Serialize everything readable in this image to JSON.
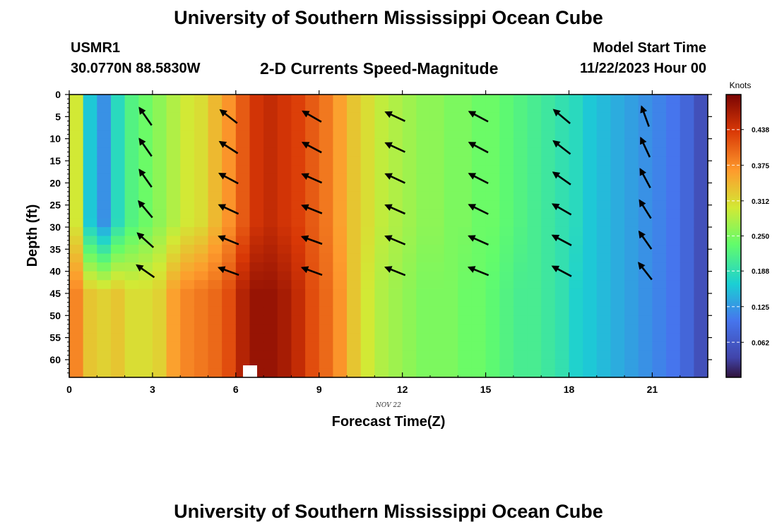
{
  "header": {
    "title": "University of Southern Mississippi Ocean Cube",
    "station_id": "USMR1",
    "location": "30.0770N  88.5830W",
    "subtitle": "2-D Currents Speed-Magnitude",
    "model_label": "Model Start Time",
    "model_time": "11/22/2023 Hour 00"
  },
  "footer": {
    "title": "University of Southern Mississippi Ocean Cube"
  },
  "chart_data": {
    "type": "heatmap",
    "xlabel": "Forecast Time(Z)",
    "ylabel": "Depth (ft)",
    "date_label": "NOV 22",
    "xlim": [
      0,
      23
    ],
    "ylim": [
      0,
      64
    ],
    "x_ticks": [
      0,
      3,
      6,
      9,
      12,
      15,
      18,
      21
    ],
    "y_ticks": [
      0,
      5,
      10,
      15,
      20,
      25,
      30,
      35,
      40,
      45,
      50,
      55,
      60
    ],
    "colorbar": {
      "unit": "Knots",
      "range": [
        0,
        0.5
      ],
      "ticks": [
        "0.438",
        "0.375",
        "0.312",
        "0.250",
        "0.188",
        "0.125",
        "0.062"
      ],
      "tick_values": [
        0.438,
        0.375,
        0.312,
        0.25,
        0.188,
        0.125,
        0.062
      ]
    },
    "hours": [
      0,
      0.5,
      1,
      1.5,
      2,
      2.5,
      3,
      3.5,
      4,
      4.5,
      5,
      5.5,
      6,
      6.5,
      7,
      7.5,
      8,
      8.5,
      9,
      9.5,
      10,
      10.5,
      11,
      11.5,
      12,
      12.5,
      13,
      13.5,
      14,
      14.5,
      15,
      15.5,
      16,
      16.5,
      17,
      17.5,
      18,
      18.5,
      19,
      19.5,
      20,
      20.5,
      21,
      21.5,
      22,
      22.5
    ],
    "speed_upper_knots": [
      0.3,
      0.16,
      0.12,
      0.18,
      0.22,
      0.24,
      0.26,
      0.28,
      0.3,
      0.31,
      0.34,
      0.37,
      0.41,
      0.44,
      0.45,
      0.44,
      0.43,
      0.41,
      0.39,
      0.36,
      0.33,
      0.31,
      0.29,
      0.28,
      0.27,
      0.26,
      0.26,
      0.25,
      0.25,
      0.24,
      0.24,
      0.23,
      0.22,
      0.21,
      0.2,
      0.19,
      0.18,
      0.16,
      0.15,
      0.14,
      0.13,
      0.12,
      0.11,
      0.1,
      0.08,
      0.05
    ],
    "speed_lower_knots": [
      0.38,
      0.33,
      0.32,
      0.33,
      0.31,
      0.31,
      0.32,
      0.36,
      0.38,
      0.39,
      0.4,
      0.42,
      0.46,
      0.48,
      0.48,
      0.47,
      0.45,
      0.42,
      0.4,
      0.37,
      0.33,
      0.3,
      0.28,
      0.27,
      0.26,
      0.25,
      0.25,
      0.25,
      0.24,
      0.24,
      0.23,
      0.22,
      0.21,
      0.21,
      0.2,
      0.19,
      0.17,
      0.16,
      0.15,
      0.14,
      0.13,
      0.12,
      0.11,
      0.1,
      0.08,
      0.05
    ],
    "vector_hours": [
      2.75,
      5.75,
      8.75,
      11.75,
      14.75,
      17.75,
      20.75
    ],
    "vector_depths": [
      5,
      12,
      19,
      26,
      33,
      40
    ],
    "vector_direction_deg": [
      [
        325,
        325,
        325,
        320,
        312,
        305
      ],
      [
        308,
        303,
        298,
        295,
        292,
        290
      ],
      [
        300,
        298,
        294,
        292,
        290,
        290
      ],
      [
        295,
        295,
        295,
        294,
        293,
        292
      ],
      [
        298,
        298,
        297,
        296,
        294,
        292
      ],
      [
        310,
        308,
        305,
        300,
        298,
        298
      ],
      [
        340,
        335,
        332,
        328,
        325,
        322
      ]
    ]
  }
}
